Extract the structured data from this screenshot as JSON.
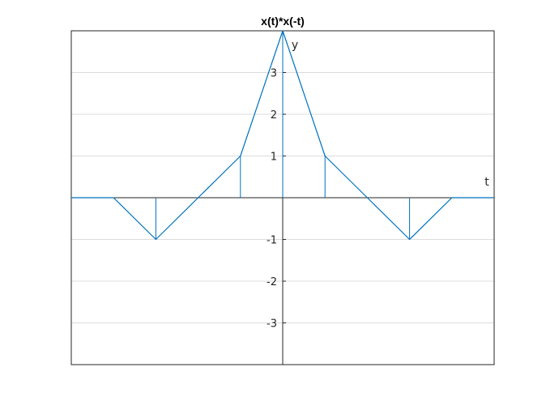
{
  "chart_data": {
    "type": "line",
    "title": "x(t)*x(-t)",
    "xlabel": "t",
    "ylabel": "y",
    "xlim": [
      -5,
      5
    ],
    "ylim": [
      -4,
      4
    ],
    "yticks": [
      -3,
      -2,
      -1,
      1,
      2,
      3
    ],
    "grid": "horizontal",
    "axis_location": "origin",
    "box": true,
    "series_color": "#0072BD",
    "series": [
      {
        "x": [
          -5,
          -4,
          -3,
          -2,
          -1,
          0,
          1,
          2,
          3,
          4,
          5
        ],
        "y": [
          0,
          0,
          -1,
          0,
          1,
          4,
          1,
          0,
          -1,
          0,
          0
        ]
      }
    ],
    "stems": [
      {
        "x": -3,
        "y": -1
      },
      {
        "x": -1,
        "y": 1
      },
      {
        "x": 0,
        "y": 4
      },
      {
        "x": 1,
        "y": 1
      },
      {
        "x": 3,
        "y": -1
      }
    ]
  }
}
